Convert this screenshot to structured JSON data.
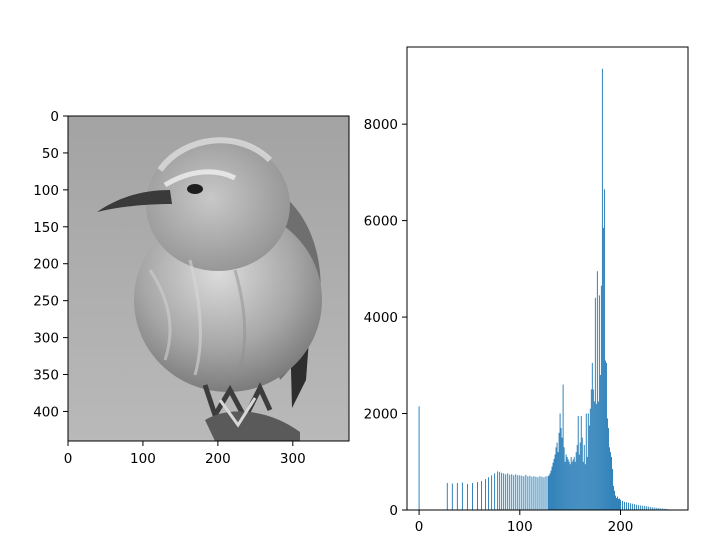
{
  "chart_data": [
    {
      "type": "image",
      "colormap": "gray",
      "xlim": [
        0,
        375
      ],
      "ylim": [
        440,
        0
      ],
      "xticks": [
        0,
        100,
        200,
        300
      ],
      "yticks": [
        0,
        50,
        100,
        150,
        200,
        250,
        300,
        350,
        400
      ],
      "xtick_labels": [
        "0",
        "100",
        "200",
        "300"
      ],
      "ytick_labels": [
        "0",
        "50",
        "100",
        "150",
        "200",
        "250",
        "300",
        "350",
        "400"
      ],
      "title": "",
      "xlabel": "",
      "ylabel": ""
    },
    {
      "type": "bar",
      "color": "#1f77b4",
      "xlim": [
        -12,
        267
      ],
      "ylim": [
        0,
        9600
      ],
      "xticks": [
        0,
        100,
        200
      ],
      "yticks": [
        0,
        2000,
        4000,
        6000,
        8000
      ],
      "xtick_labels": [
        "0",
        "100",
        "200"
      ],
      "ytick_labels": [
        "0",
        "2000",
        "4000",
        "6000",
        "8000"
      ],
      "title": "",
      "xlabel": "",
      "ylabel": "",
      "x": [
        0,
        28,
        33,
        38,
        43,
        48,
        53,
        58,
        62,
        66,
        69,
        72,
        75,
        78,
        80,
        82,
        84,
        86,
        88,
        90,
        92,
        94,
        96,
        98,
        100,
        102,
        104,
        106,
        108,
        110,
        112,
        114,
        116,
        118,
        120,
        122,
        124,
        126,
        128,
        129,
        130,
        131,
        132,
        133,
        134,
        135,
        136,
        137,
        138,
        139,
        140,
        141,
        142,
        143,
        144,
        145,
        146,
        147,
        148,
        149,
        150,
        151,
        152,
        153,
        154,
        155,
        156,
        157,
        158,
        159,
        160,
        161,
        162,
        163,
        164,
        165,
        166,
        167,
        168,
        169,
        170,
        171,
        172,
        173,
        174,
        175,
        176,
        177,
        178,
        179,
        180,
        181,
        182,
        183,
        184,
        185,
        186,
        187,
        188,
        189,
        190,
        191,
        192,
        193,
        194,
        195,
        196,
        197,
        198,
        199,
        200,
        202,
        204,
        206,
        208,
        210,
        212,
        214,
        216,
        218,
        220,
        222,
        224,
        226,
        228,
        230,
        232,
        234,
        236,
        238,
        240,
        242,
        244,
        246,
        248,
        250
      ],
      "values": [
        2150,
        560,
        550,
        560,
        570,
        540,
        560,
        580,
        600,
        640,
        680,
        720,
        760,
        800,
        790,
        770,
        760,
        740,
        760,
        730,
        740,
        720,
        740,
        720,
        720,
        710,
        700,
        730,
        700,
        710,
        690,
        700,
        690,
        680,
        700,
        690,
        680,
        700,
        700,
        720,
        760,
        820,
        900,
        980,
        1060,
        1150,
        1300,
        1400,
        1200,
        1600,
        2000,
        1700,
        1500,
        2600,
        1300,
        1000,
        1150,
        1100,
        1050,
        1000,
        950,
        1100,
        1000,
        1050,
        1100,
        1000,
        1200,
        1350,
        1950,
        1150,
        1400,
        1950,
        1500,
        1000,
        1350,
        950,
        2000,
        1100,
        2000,
        1750,
        2100,
        2500,
        3050,
        2500,
        2250,
        4400,
        2200,
        4950,
        2250,
        4450,
        2800,
        4650,
        9150,
        5850,
        6650,
        3100,
        3050,
        1900,
        1700,
        1300,
        1200,
        1100,
        850,
        500,
        400,
        300,
        250,
        280,
        230,
        240,
        210,
        190,
        170,
        160,
        150,
        140,
        130,
        120,
        110,
        100,
        95,
        90,
        85,
        80,
        70,
        60,
        55,
        50,
        45,
        40,
        35,
        30,
        25,
        20,
        15,
        10
      ]
    }
  ]
}
